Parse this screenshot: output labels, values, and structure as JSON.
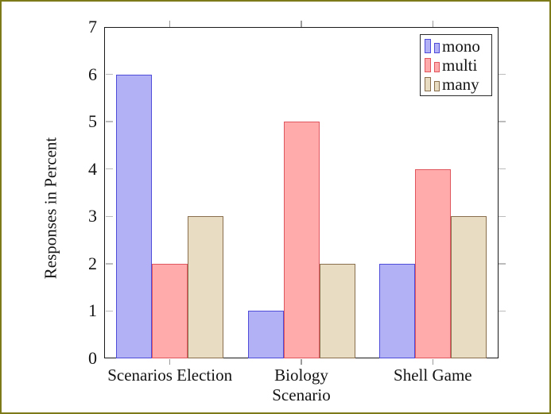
{
  "frame": {
    "border_color": "#7d7a19",
    "background": "#ffffff"
  },
  "chart_data": {
    "type": "bar",
    "title": "",
    "xlabel": "Scenario",
    "ylabel": "Responses in Percent",
    "categories": [
      "Scenarios Election",
      "Biology",
      "Shell Game"
    ],
    "series": [
      {
        "name": "mono",
        "values": [
          6,
          1,
          2
        ],
        "fill": "#b3b1f6",
        "stroke": "#4f4cd9"
      },
      {
        "name": "multi",
        "values": [
          2,
          5,
          4
        ],
        "fill": "#ffabab",
        "stroke": "#e0565e"
      },
      {
        "name": "many",
        "values": [
          3,
          2,
          3
        ],
        "fill": "#e8dcc3",
        "stroke": "#8a6f4f"
      }
    ],
    "ylim": [
      0,
      7
    ],
    "yticks": [
      0,
      1,
      2,
      3,
      4,
      5,
      6,
      7
    ],
    "grid": false,
    "legend_position": "top-right",
    "legend_labels": [
      "mono",
      "multi",
      "many"
    ]
  }
}
